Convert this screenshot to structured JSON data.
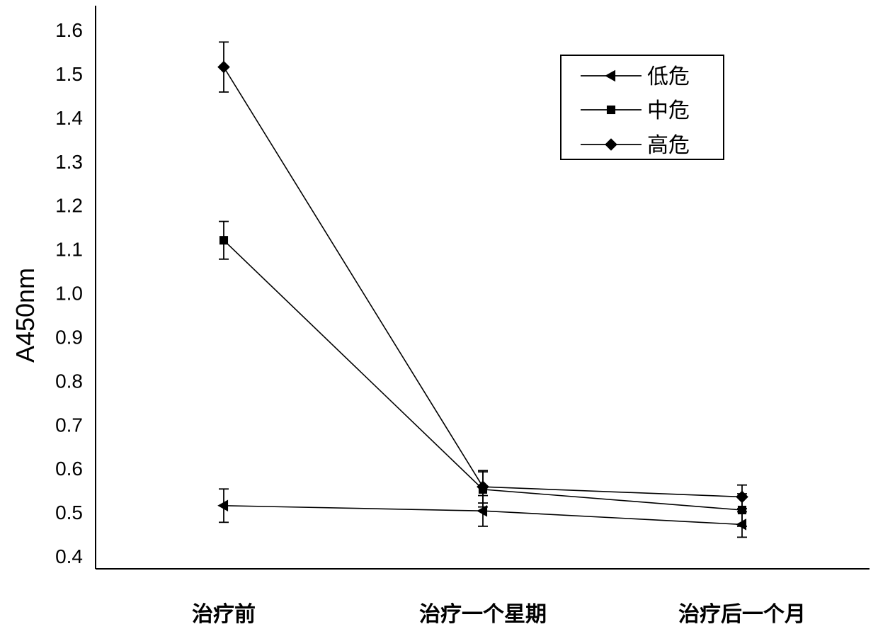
{
  "chart_data": {
    "type": "line",
    "title": "",
    "xlabel": "",
    "ylabel": "A450nm",
    "categories": [
      "治疗前",
      "治疗一个星期",
      "治疗后一个月"
    ],
    "ylim": [
      0.4,
      1.6
    ],
    "yticks": [
      "0.4",
      "0.5",
      "0.6",
      "0.7",
      "0.8",
      "0.9",
      "1.0",
      "1.1",
      "1.2",
      "1.3",
      "1.4",
      "1.5",
      "1.6"
    ],
    "grid": false,
    "legend_position": "top-right",
    "series": [
      {
        "name": "低危",
        "marker": "triangle-left",
        "color": "#000000",
        "values": [
          0.515,
          0.503,
          0.472
        ],
        "error_low": [
          0.477,
          0.468,
          0.443
        ],
        "error_high": [
          0.553,
          0.538,
          0.501
        ]
      },
      {
        "name": "中危",
        "marker": "square",
        "color": "#000000",
        "values": [
          1.12,
          0.552,
          0.505
        ],
        "error_low": [
          1.077,
          0.512,
          0.468
        ],
        "error_high": [
          1.163,
          0.592,
          0.542
        ]
      },
      {
        "name": "高危",
        "marker": "diamond",
        "color": "#000000",
        "values": [
          1.515,
          0.558,
          0.535
        ],
        "error_low": [
          1.458,
          0.521,
          0.508
        ],
        "error_high": [
          1.572,
          0.595,
          0.562
        ]
      }
    ]
  }
}
